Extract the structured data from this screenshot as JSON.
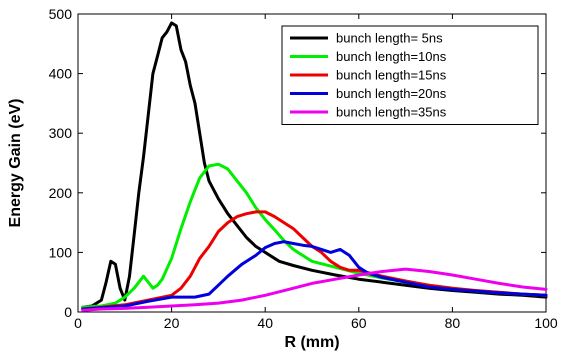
{
  "chart_data": {
    "type": "line",
    "title": "",
    "xlabel": "R (mm)",
    "ylabel": "Energy Gain (eV)",
    "xlim": [
      0,
      100
    ],
    "ylim": [
      0,
      500
    ],
    "xticks": [
      "0",
      "20",
      "40",
      "60",
      "80",
      "100"
    ],
    "yticks": [
      "0",
      "100",
      "200",
      "300",
      "400",
      "500"
    ],
    "grid": false,
    "legend_position": "top-right",
    "series": [
      {
        "name": "bunch length= 5ns",
        "color": "#000000",
        "x": [
          1,
          3,
          5,
          6,
          7,
          8,
          9,
          10,
          11,
          12,
          13,
          14,
          15,
          16,
          17,
          18,
          19,
          20,
          21,
          22,
          23,
          24,
          25,
          26,
          27,
          28,
          30,
          32,
          34,
          36,
          38,
          40,
          43,
          46,
          50,
          55,
          60,
          65,
          70,
          75,
          80,
          85,
          90,
          95,
          100
        ],
        "y": [
          8,
          10,
          20,
          50,
          85,
          80,
          40,
          20,
          60,
          130,
          200,
          260,
          330,
          400,
          430,
          460,
          470,
          485,
          480,
          440,
          420,
          380,
          350,
          300,
          250,
          220,
          190,
          165,
          145,
          125,
          110,
          100,
          85,
          78,
          70,
          62,
          55,
          50,
          45,
          40,
          36,
          33,
          30,
          28,
          25
        ]
      },
      {
        "name": "bunch length=10ns",
        "color": "#00ee00",
        "x": [
          1,
          5,
          8,
          10,
          12,
          14,
          15,
          16,
          17,
          18,
          20,
          22,
          24,
          26,
          28,
          30,
          32,
          34,
          36,
          38,
          40,
          42,
          44,
          46,
          48,
          50,
          55,
          60,
          65,
          70,
          75,
          80,
          85,
          90,
          95,
          100
        ],
        "y": [
          8,
          10,
          15,
          25,
          40,
          60,
          50,
          40,
          45,
          55,
          90,
          140,
          185,
          225,
          245,
          248,
          240,
          220,
          200,
          175,
          155,
          138,
          120,
          105,
          95,
          85,
          75,
          65,
          57,
          50,
          45,
          40,
          35,
          32,
          30,
          28
        ]
      },
      {
        "name": "bunch length=15ns",
        "color": "#ee0000",
        "x": [
          1,
          5,
          10,
          15,
          20,
          22,
          24,
          26,
          28,
          30,
          32,
          34,
          36,
          38,
          40,
          42,
          44,
          46,
          48,
          50,
          52,
          54,
          56,
          58,
          60,
          65,
          70,
          75,
          80,
          85,
          90,
          95,
          100
        ],
        "y": [
          5,
          8,
          12,
          20,
          28,
          40,
          60,
          90,
          110,
          135,
          150,
          160,
          165,
          168,
          168,
          160,
          150,
          140,
          125,
          110,
          100,
          85,
          75,
          70,
          70,
          60,
          52,
          45,
          40,
          36,
          33,
          30,
          28
        ]
      },
      {
        "name": "bunch length=20ns",
        "color": "#0000dd",
        "x": [
          1,
          5,
          10,
          15,
          20,
          25,
          28,
          30,
          32,
          35,
          38,
          40,
          42,
          44,
          46,
          48,
          50,
          52,
          54,
          56,
          58,
          60,
          62,
          65,
          70,
          75,
          80,
          85,
          90,
          95,
          100
        ],
        "y": [
          5,
          7,
          10,
          18,
          25,
          25,
          30,
          45,
          60,
          80,
          95,
          108,
          115,
          118,
          115,
          112,
          110,
          105,
          100,
          105,
          95,
          75,
          65,
          58,
          50,
          42,
          38,
          35,
          32,
          30,
          28
        ]
      },
      {
        "name": "bunch length=35ns",
        "color": "#ee00ee",
        "x": [
          1,
          5,
          10,
          15,
          20,
          25,
          30,
          35,
          40,
          45,
          50,
          55,
          60,
          65,
          70,
          75,
          80,
          85,
          90,
          95,
          100
        ],
        "y": [
          3,
          5,
          6,
          8,
          10,
          12,
          15,
          20,
          28,
          38,
          48,
          55,
          62,
          68,
          72,
          68,
          62,
          55,
          48,
          42,
          38
        ]
      }
    ]
  }
}
